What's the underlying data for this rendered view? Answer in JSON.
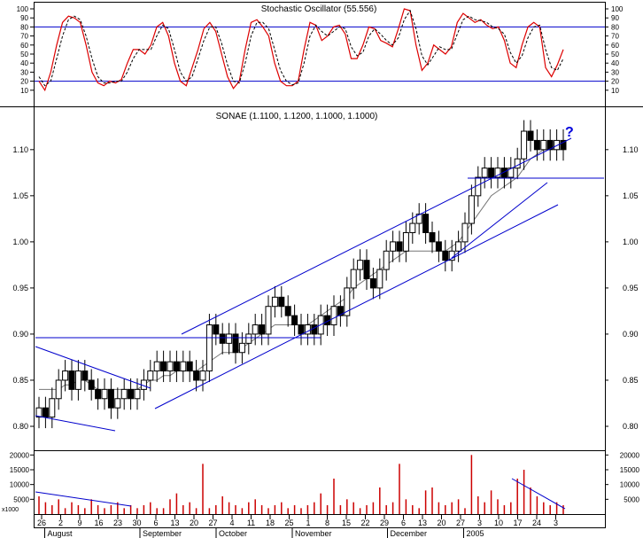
{
  "colors": {
    "frame": "#000000",
    "trend": "#0000cc",
    "stoch_k": "#dd0000",
    "stoch_d": "#000000",
    "volume": "#cc0000",
    "sma": "#777777",
    "question": "#0000dd"
  },
  "chart_data": [
    {
      "type": "line",
      "panel": "stochastic",
      "title": "Stochastic Oscillator (55.556)",
      "ylim": [
        0,
        100
      ],
      "yticks": [
        "100",
        "90",
        "80",
        "70",
        "60",
        "50",
        "40",
        "30",
        "20",
        "10"
      ],
      "ytick_values": [
        100,
        90,
        80,
        70,
        60,
        50,
        40,
        30,
        20,
        10
      ],
      "reference_levels": [
        80,
        20
      ],
      "series": [
        {
          "style": "solid-red",
          "values": [
            20,
            10,
            30,
            60,
            85,
            92,
            90,
            85,
            60,
            30,
            18,
            15,
            20,
            18,
            22,
            40,
            55,
            55,
            50,
            60,
            80,
            85,
            70,
            40,
            20,
            15,
            35,
            55,
            78,
            85,
            75,
            50,
            25,
            12,
            20,
            55,
            85,
            88,
            80,
            70,
            40,
            20,
            15,
            15,
            20,
            55,
            85,
            82,
            65,
            70,
            80,
            82,
            72,
            45,
            45,
            60,
            80,
            78,
            65,
            62,
            58,
            78,
            100,
            98,
            60,
            32,
            40,
            60,
            55,
            50,
            58,
            85,
            95,
            90,
            85,
            88,
            82,
            78,
            80,
            65,
            40,
            35,
            60,
            80,
            85,
            80,
            35,
            25,
            38,
            55
          ]
        },
        {
          "style": "dashed-black",
          "values": [
            25,
            15,
            20,
            45,
            70,
            88,
            92,
            88,
            70,
            45,
            25,
            18,
            18,
            20,
            20,
            30,
            45,
            55,
            55,
            55,
            70,
            82,
            78,
            55,
            30,
            20,
            25,
            45,
            65,
            80,
            80,
            62,
            38,
            20,
            18,
            40,
            70,
            85,
            85,
            78,
            55,
            32,
            20,
            16,
            18,
            40,
            70,
            82,
            75,
            70,
            75,
            80,
            78,
            58,
            48,
            52,
            70,
            78,
            72,
            65,
            60,
            68,
            88,
            98,
            78,
            48,
            38,
            48,
            58,
            55,
            55,
            72,
            88,
            92,
            88,
            87,
            85,
            80,
            78,
            72,
            52,
            40,
            48,
            68,
            80,
            82,
            55,
            35,
            32,
            45
          ]
        }
      ]
    },
    {
      "type": "candlestick",
      "panel": "price",
      "title": "SONAE (1.1100, 1.1200, 1.1000, 1.1000)",
      "ylim": [
        0.775,
        1.145
      ],
      "yticks": [
        "1.10",
        "1.05",
        "1.00",
        "0.95",
        "0.90",
        "0.85",
        "0.80"
      ],
      "ytick_values": [
        1.1,
        1.05,
        1.0,
        0.95,
        0.9,
        0.85,
        0.8
      ],
      "annotation": "?",
      "close": [
        0.82,
        0.81,
        0.83,
        0.85,
        0.86,
        0.84,
        0.86,
        0.85,
        0.84,
        0.83,
        0.84,
        0.82,
        0.83,
        0.84,
        0.83,
        0.84,
        0.85,
        0.86,
        0.87,
        0.86,
        0.87,
        0.86,
        0.87,
        0.86,
        0.85,
        0.86,
        0.91,
        0.9,
        0.89,
        0.9,
        0.88,
        0.89,
        0.9,
        0.91,
        0.9,
        0.93,
        0.94,
        0.93,
        0.92,
        0.91,
        0.9,
        0.91,
        0.9,
        0.92,
        0.91,
        0.93,
        0.92,
        0.95,
        0.97,
        0.98,
        0.96,
        0.95,
        0.97,
        0.99,
        1.0,
        0.99,
        1.01,
        1.02,
        1.03,
        1.01,
        1.0,
        0.99,
        0.98,
        0.99,
        1.0,
        1.02,
        1.05,
        1.07,
        1.08,
        1.07,
        1.08,
        1.07,
        1.08,
        1.09,
        1.12,
        1.11,
        1.1,
        1.11,
        1.1,
        1.11,
        1.1
      ],
      "sma": [
        0.84,
        0.84,
        0.84,
        0.84,
        0.845,
        0.845,
        0.85,
        0.85,
        0.845,
        0.84,
        0.84,
        0.84,
        0.84,
        0.84,
        0.84,
        0.84,
        0.845,
        0.85,
        0.85,
        0.855,
        0.855,
        0.86,
        0.86,
        0.86,
        0.86,
        0.865,
        0.87,
        0.875,
        0.88,
        0.88,
        0.88,
        0.885,
        0.89,
        0.895,
        0.9,
        0.905,
        0.91,
        0.91,
        0.91,
        0.91,
        0.91,
        0.91,
        0.915,
        0.92,
        0.925,
        0.93,
        0.935,
        0.94,
        0.95,
        0.955,
        0.96,
        0.965,
        0.97,
        0.975,
        0.98,
        0.985,
        0.99,
        0.99,
        0.99,
        0.99,
        0.99,
        0.99,
        0.99,
        0.995,
        1.0,
        1.01,
        1.02,
        1.03,
        1.04,
        1.05,
        1.055,
        1.06,
        1.065,
        1.07,
        1.08,
        1.09,
        1.095,
        1.1,
        1.1,
        1.1,
        1.1
      ]
    },
    {
      "type": "bar",
      "panel": "volume",
      "ylim": [
        0,
        21000
      ],
      "yticks": [
        "20000",
        "15000",
        "10000",
        "5000"
      ],
      "ytick_values": [
        20000,
        15000,
        10000,
        5000
      ],
      "unit_label": "x1000",
      "values": [
        6000,
        4000,
        3000,
        5000,
        2000,
        4000,
        3000,
        2000,
        5000,
        3000,
        2000,
        3000,
        4000,
        2000,
        3000,
        2000,
        3000,
        4000,
        2000,
        2000,
        5000,
        7000,
        3000,
        4000,
        2000,
        17000,
        2000,
        3000,
        6000,
        4000,
        3000,
        2000,
        4000,
        5000,
        3000,
        2000,
        3000,
        4000,
        2000,
        3000,
        2000,
        3000,
        4000,
        7000,
        3000,
        12000,
        3000,
        5000,
        4000,
        2000,
        3000,
        4000,
        9000,
        3000,
        4000,
        17000,
        5000,
        3000,
        2000,
        8000,
        9000,
        4000,
        3000,
        4000,
        5000,
        2000,
        20000,
        6000,
        4000,
        8000,
        5000,
        3000,
        4000,
        12000,
        15000,
        9000,
        6000,
        4000,
        3000,
        4000,
        3000
      ]
    }
  ],
  "x_axis": {
    "day_ticks": [
      "26",
      "2",
      "9",
      "16",
      "23",
      "30",
      "6",
      "13",
      "20",
      "27",
      "4",
      "11",
      "18",
      "25",
      "1",
      "8",
      "15",
      "22",
      "29",
      "6",
      "13",
      "20",
      "27",
      "3",
      "10",
      "17",
      "24",
      "3"
    ],
    "months": [
      "August",
      "September",
      "October",
      "November",
      "December",
      "2005"
    ]
  }
}
